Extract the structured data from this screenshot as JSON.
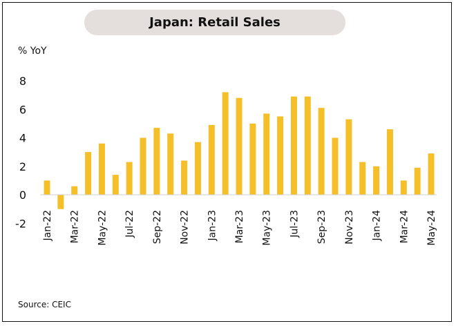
{
  "title": "Japan: Retail Sales",
  "source": "Source: CEIC",
  "chart_data": {
    "type": "bar",
    "title": "Japan: Retail Sales",
    "ylabel": "% YoY",
    "xlabel": "",
    "ylim": [
      -2,
      8
    ],
    "yticks": [
      -2,
      0,
      2,
      4,
      6,
      8
    ],
    "grid": false,
    "bar_color": "#f5bf2a",
    "categories": [
      "Jan-22",
      "Feb-22",
      "Mar-22",
      "Apr-22",
      "May-22",
      "Jun-22",
      "Jul-22",
      "Aug-22",
      "Sep-22",
      "Oct-22",
      "Nov-22",
      "Dec-22",
      "Jan-23",
      "Feb-23",
      "Mar-23",
      "Apr-23",
      "May-23",
      "Jun-23",
      "Jul-23",
      "Aug-23",
      "Sep-23",
      "Oct-23",
      "Nov-23",
      "Dec-23",
      "Jan-24",
      "Feb-24",
      "Mar-24",
      "Apr-24",
      "May-24"
    ],
    "tick_labels": [
      "Jan-22",
      "Mar-22",
      "May-22",
      "Jul-22",
      "Sep-22",
      "Nov-22",
      "Jan-23",
      "Mar-23",
      "May-23",
      "Jul-23",
      "Sep-23",
      "Nov-23",
      "Jan-24",
      "Mar-24",
      "May-24"
    ],
    "values": [
      1.0,
      -1.0,
      0.6,
      3.0,
      3.6,
      1.4,
      2.3,
      4.0,
      4.7,
      4.3,
      2.4,
      3.7,
      4.9,
      7.2,
      6.8,
      5.0,
      5.7,
      5.5,
      6.9,
      6.9,
      6.1,
      4.0,
      5.3,
      2.3,
      2.0,
      4.6,
      1.0,
      1.9,
      2.9
    ]
  }
}
